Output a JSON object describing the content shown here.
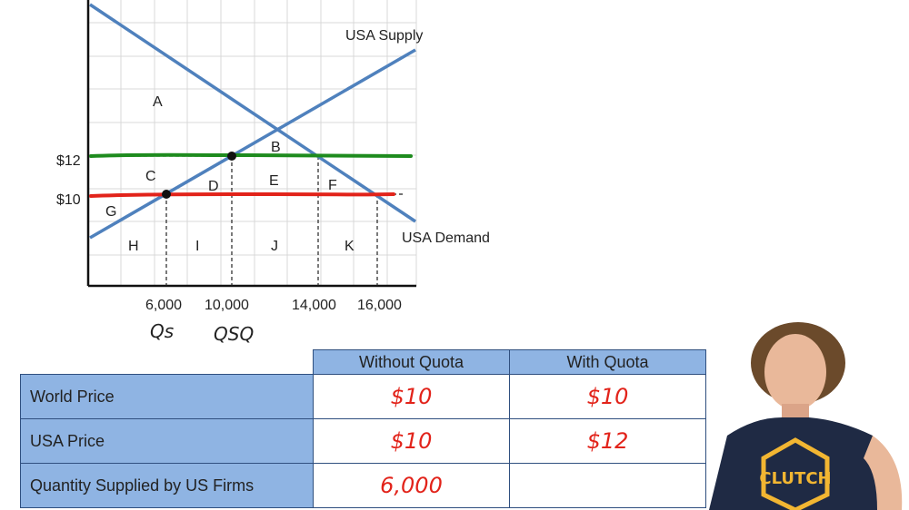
{
  "labels": {
    "supply_curve": "USA Supply",
    "demand_curve": "USA Demand",
    "price_12": "$12",
    "price_10": "$10",
    "qty_ticks": [
      "6,000",
      "10,000",
      "14,000",
      "16,000"
    ],
    "handwritten_q": [
      "Qs",
      "QSQ"
    ],
    "areas": [
      "A",
      "B",
      "C",
      "D",
      "E",
      "F",
      "G",
      "H",
      "I",
      "J",
      "K"
    ]
  },
  "table": {
    "headers": [
      "Without Quota",
      "With Quota"
    ],
    "rows": [
      {
        "label": "World Price",
        "without": "$10",
        "with": "$10"
      },
      {
        "label": "USA Price",
        "without": "$10",
        "with": "$12"
      },
      {
        "label": "Quantity Supplied by US Firms",
        "without": "6,000",
        "with": ""
      }
    ]
  },
  "presenter": {
    "shirt_text": "CLUTCH"
  },
  "colors": {
    "curves": "#4f81bd",
    "price_12_line": "#1e8b1e",
    "price_10_line": "#e2231a",
    "table_header": "#8fb4e3"
  }
}
